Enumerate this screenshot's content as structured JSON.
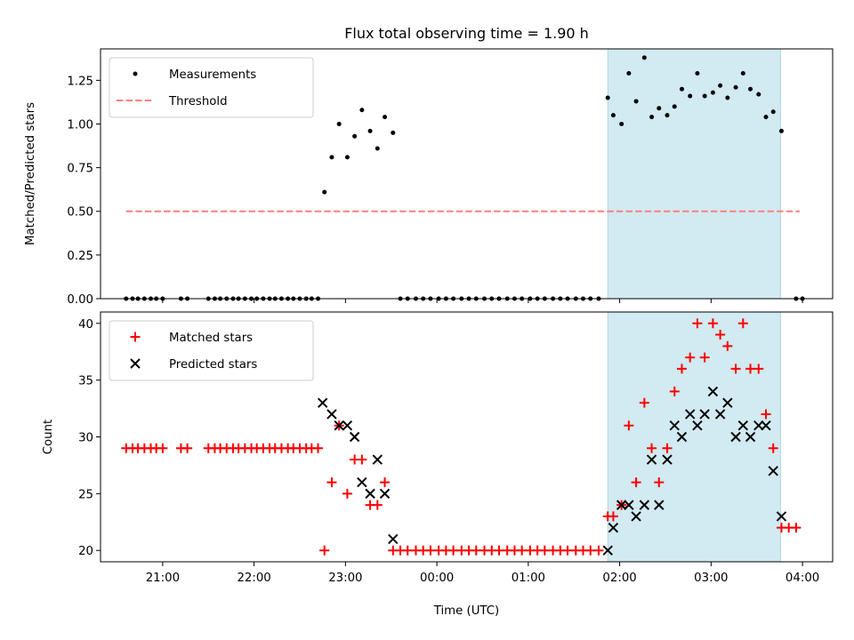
{
  "figure": {
    "title": "Flux total observing time = 1.90 h",
    "xlabel": "Time (UTC)",
    "xticks": [
      {
        "t": 21.0,
        "label": "21:00"
      },
      {
        "t": 22.0,
        "label": "22:00"
      },
      {
        "t": 23.0,
        "label": "23:00"
      },
      {
        "t": 24.0,
        "label": "00:00"
      },
      {
        "t": 25.0,
        "label": "01:00"
      },
      {
        "t": 26.0,
        "label": "02:00"
      },
      {
        "t": 27.0,
        "label": "03:00"
      },
      {
        "t": 28.0,
        "label": "04:00"
      }
    ],
    "xlim": [
      20.32,
      28.33
    ],
    "shaded_span": [
      25.87,
      27.76
    ],
    "colors": {
      "span": "#add8e6",
      "threshold": "#ff7f7f",
      "matched": "#ff0000",
      "predicted": "#000000",
      "measurement": "#000000"
    }
  },
  "chart_data": [
    {
      "type": "scatter",
      "title": "Flux total observing time = 1.90 h",
      "xlabel": "",
      "ylabel": "Matched/Predicted stars",
      "ylim": [
        0.0,
        1.43
      ],
      "yticks": [
        "0.00",
        "0.25",
        "0.50",
        "0.75",
        "1.00",
        "1.25"
      ],
      "legend": {
        "position": "upper-left",
        "entries": [
          "Measurements",
          "Threshold"
        ]
      },
      "series": [
        {
          "name": "Measurements",
          "x": [
            20.6,
            20.67,
            20.73,
            20.8,
            20.87,
            20.93,
            21.0,
            21.2,
            21.27,
            21.5,
            21.57,
            21.63,
            21.7,
            21.77,
            21.83,
            21.9,
            21.97,
            22.03,
            22.1,
            22.17,
            22.23,
            22.3,
            22.37,
            22.43,
            22.5,
            22.57,
            22.63,
            22.7,
            22.77,
            22.85,
            22.93,
            23.02,
            23.1,
            23.18,
            23.27,
            23.35,
            23.43,
            23.52,
            23.6,
            23.68,
            23.77,
            23.85,
            23.93,
            24.02,
            24.1,
            24.18,
            24.27,
            24.35,
            24.43,
            24.52,
            24.6,
            24.68,
            24.77,
            24.85,
            24.93,
            25.02,
            25.1,
            25.18,
            25.27,
            25.35,
            25.43,
            25.52,
            25.6,
            25.68,
            25.77,
            25.87,
            25.93,
            26.02,
            26.1,
            26.18,
            26.27,
            26.35,
            26.43,
            26.52,
            26.6,
            26.68,
            26.77,
            26.85,
            26.93,
            27.02,
            27.1,
            27.18,
            27.27,
            27.35,
            27.43,
            27.52,
            27.6,
            27.68,
            27.77,
            27.93,
            28.0
          ],
          "y": [
            0,
            0,
            0,
            0,
            0,
            0,
            0,
            0,
            0,
            0,
            0,
            0,
            0,
            0,
            0,
            0,
            0,
            0,
            0,
            0,
            0,
            0,
            0,
            0,
            0,
            0,
            0,
            0,
            0.61,
            0.81,
            1.0,
            0.81,
            0.93,
            1.08,
            0.96,
            0.86,
            1.04,
            0.95,
            0,
            0,
            0,
            0,
            0,
            0,
            0,
            0,
            0,
            0,
            0,
            0,
            0,
            0,
            0,
            0,
            0,
            0,
            0,
            0,
            0,
            0,
            0,
            0,
            0,
            0,
            0,
            1.15,
            1.05,
            1.0,
            1.29,
            1.13,
            1.38,
            1.04,
            1.09,
            1.05,
            1.1,
            1.2,
            1.16,
            1.29,
            1.16,
            1.18,
            1.22,
            1.15,
            1.21,
            1.29,
            1.2,
            1.17,
            1.04,
            1.07,
            0.96,
            0,
            0
          ]
        },
        {
          "name": "Threshold",
          "x": [
            20.6,
            27.97
          ],
          "y": [
            0.5,
            0.5
          ]
        }
      ]
    },
    {
      "type": "scatter",
      "title": "",
      "xlabel": "Time (UTC)",
      "ylabel": "Count",
      "ylim": [
        19.0,
        41.0
      ],
      "yticks": [
        "20",
        "25",
        "30",
        "35",
        "40"
      ],
      "legend": {
        "position": "upper-left",
        "entries": [
          "Matched stars",
          "Predicted stars"
        ]
      },
      "series": [
        {
          "name": "Matched stars",
          "marker": "+",
          "x": [
            20.6,
            20.67,
            20.73,
            20.8,
            20.87,
            20.93,
            21.0,
            21.2,
            21.27,
            21.5,
            21.57,
            21.63,
            21.7,
            21.77,
            21.83,
            21.9,
            21.97,
            22.03,
            22.1,
            22.17,
            22.23,
            22.3,
            22.37,
            22.43,
            22.5,
            22.57,
            22.63,
            22.7,
            22.77,
            22.85,
            22.93,
            23.02,
            23.1,
            23.18,
            23.27,
            23.35,
            23.43,
            23.52,
            23.6,
            23.68,
            23.77,
            23.85,
            23.93,
            24.02,
            24.1,
            24.18,
            24.27,
            24.35,
            24.43,
            24.52,
            24.6,
            24.68,
            24.77,
            24.85,
            24.93,
            25.02,
            25.1,
            25.18,
            25.27,
            25.35,
            25.43,
            25.52,
            25.6,
            25.68,
            25.77,
            25.87,
            25.93,
            26.02,
            26.1,
            26.18,
            26.27,
            26.35,
            26.43,
            26.52,
            26.6,
            26.68,
            26.77,
            26.85,
            26.93,
            27.02,
            27.1,
            27.18,
            27.27,
            27.35,
            27.43,
            27.52,
            27.6,
            27.68,
            27.77,
            27.85,
            27.93
          ],
          "y": [
            29,
            29,
            29,
            29,
            29,
            29,
            29,
            29,
            29,
            29,
            29,
            29,
            29,
            29,
            29,
            29,
            29,
            29,
            29,
            29,
            29,
            29,
            29,
            29,
            29,
            29,
            29,
            29,
            20,
            26,
            31,
            25,
            28,
            28,
            24,
            24,
            26,
            20,
            20,
            20,
            20,
            20,
            20,
            20,
            20,
            20,
            20,
            20,
            20,
            20,
            20,
            20,
            20,
            20,
            20,
            20,
            20,
            20,
            20,
            20,
            20,
            20,
            20,
            20,
            20,
            23,
            23,
            24,
            31,
            26,
            33,
            29,
            26,
            29,
            34,
            36,
            37,
            40,
            37,
            40,
            39,
            38,
            36,
            40,
            36,
            36,
            32,
            29,
            22,
            22,
            22
          ]
        },
        {
          "name": "Predicted stars",
          "marker": "x",
          "x": [
            22.75,
            22.85,
            22.93,
            23.02,
            23.1,
            23.18,
            23.27,
            23.35,
            23.43,
            23.52,
            25.87,
            25.93,
            26.02,
            26.1,
            26.18,
            26.27,
            26.35,
            26.43,
            26.52,
            26.6,
            26.68,
            26.77,
            26.85,
            26.93,
            27.02,
            27.1,
            27.18,
            27.27,
            27.35,
            27.43,
            27.52,
            27.6,
            27.68,
            27.77
          ],
          "y": [
            33,
            32,
            31,
            31,
            30,
            26,
            25,
            28,
            25,
            21,
            20,
            22,
            24,
            24,
            23,
            24,
            28,
            24,
            28,
            31,
            30,
            32,
            31,
            32,
            34,
            32,
            33,
            30,
            31,
            30,
            31,
            31,
            27,
            23
          ]
        }
      ]
    }
  ]
}
